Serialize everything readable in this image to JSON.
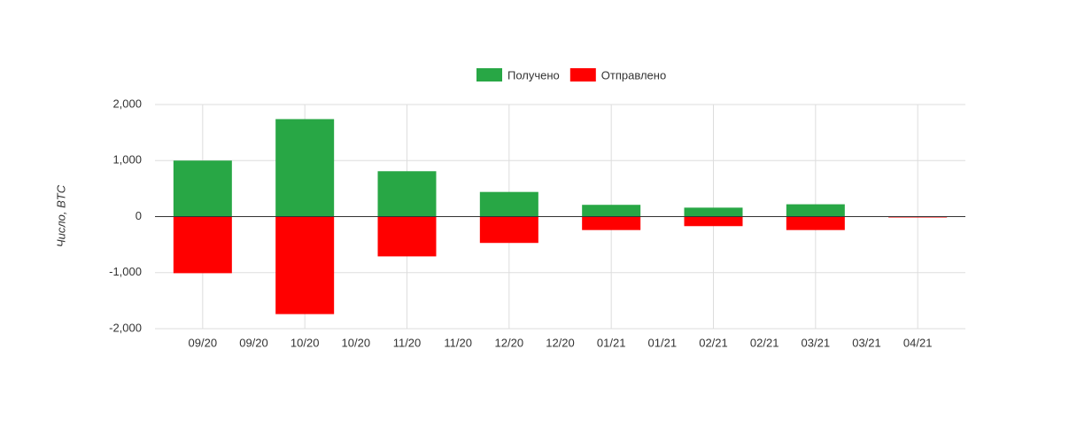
{
  "chart_data": {
    "type": "bar",
    "y_label": "Число, BTC",
    "categories": [
      "09/20",
      "09/20",
      "10/20",
      "10/20",
      "11/20",
      "11/20",
      "12/20",
      "12/20",
      "01/21",
      "01/21",
      "02/21",
      "02/21",
      "03/21",
      "03/21",
      "04/21"
    ],
    "series": [
      {
        "name": "Получено",
        "color": "#28a745",
        "values": [
          1000,
          null,
          1740,
          null,
          810,
          null,
          440,
          null,
          210,
          null,
          160,
          null,
          220,
          null,
          5
        ]
      },
      {
        "name": "Отправлено",
        "color": "#ff0000",
        "values": [
          -1010,
          null,
          -1740,
          null,
          -710,
          null,
          -470,
          null,
          -240,
          null,
          -170,
          null,
          -240,
          null,
          -10
        ]
      }
    ],
    "ylim": [
      -2000,
      2000
    ],
    "yticks": [
      {
        "value": -2000,
        "label": "-2,000"
      },
      {
        "value": -1000,
        "label": "-1,000"
      },
      0,
      {
        "value": 1000,
        "label": "1,000"
      },
      {
        "value": 2000,
        "label": "2,000"
      }
    ],
    "grid": true,
    "legend": "top"
  }
}
